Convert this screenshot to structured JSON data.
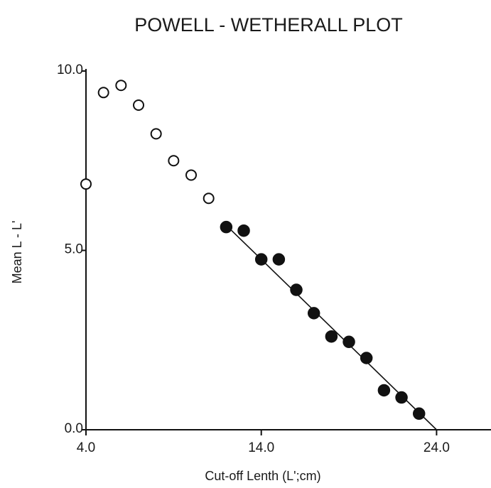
{
  "chart_data": {
    "type": "scatter",
    "title": "POWELL - WETHERALL PLOT",
    "xlabel": "Cut-off Lenth (L';cm)",
    "ylabel": "Mean L - L'",
    "xlim": [
      4.0,
      27.0
    ],
    "ylim": [
      0.0,
      10.0
    ],
    "x_ticks": [
      {
        "value": 4.0,
        "label": "4.0"
      },
      {
        "value": 14.0,
        "label": "14.0"
      },
      {
        "value": 24.0,
        "label": "24.0"
      }
    ],
    "y_ticks": [
      {
        "value": 0.0,
        "label": "0.0"
      },
      {
        "value": 5.0,
        "label": "5.0"
      },
      {
        "value": 10.0,
        "label": "10.0"
      }
    ],
    "grid": false,
    "series": [
      {
        "marker": "open-circle",
        "points": [
          {
            "x": 4.0,
            "y": 6.85
          },
          {
            "x": 5.0,
            "y": 9.4
          },
          {
            "x": 6.0,
            "y": 9.6
          },
          {
            "x": 7.0,
            "y": 9.05
          },
          {
            "x": 8.0,
            "y": 8.25
          },
          {
            "x": 9.0,
            "y": 7.5
          },
          {
            "x": 10.0,
            "y": 7.1
          },
          {
            "x": 11.0,
            "y": 6.45
          }
        ]
      },
      {
        "marker": "filled-circle",
        "points": [
          {
            "x": 12.0,
            "y": 5.65
          },
          {
            "x": 13.0,
            "y": 5.55
          },
          {
            "x": 14.0,
            "y": 4.75
          },
          {
            "x": 15.0,
            "y": 4.75
          },
          {
            "x": 16.0,
            "y": 3.9
          },
          {
            "x": 17.0,
            "y": 3.25
          },
          {
            "x": 18.0,
            "y": 2.6
          },
          {
            "x": 19.0,
            "y": 2.45
          },
          {
            "x": 20.0,
            "y": 2.0
          },
          {
            "x": 21.0,
            "y": 1.1
          },
          {
            "x": 22.0,
            "y": 0.9
          },
          {
            "x": 23.0,
            "y": 0.45
          }
        ]
      }
    ],
    "fit_line": {
      "x": [
        12.0,
        24.0
      ],
      "y": [
        5.7,
        0.0
      ]
    }
  }
}
